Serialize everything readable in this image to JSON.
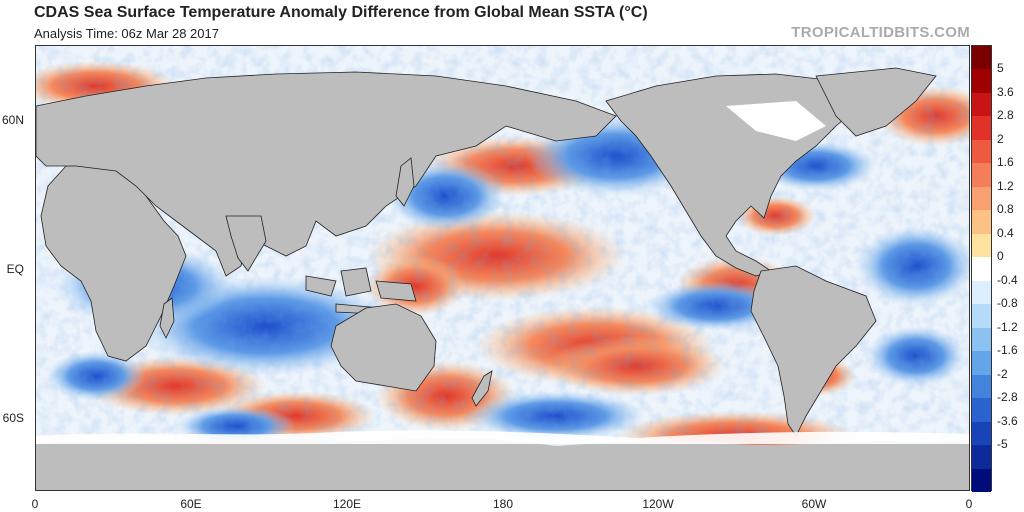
{
  "title": "CDAS Sea Surface Temperature Anomaly Difference from Global Mean SSTA (°C)",
  "subtitle": "Analysis Time: 06z Mar 28 2017",
  "source": "TROPICALTIDBITS.COM",
  "map": {
    "lat_labels": [
      "60N",
      "EQ",
      "60S"
    ],
    "lon_labels": [
      "0",
      "60E",
      "120E",
      "180",
      "120W",
      "60W",
      "0"
    ],
    "land_color": "#bdbdbd",
    "ice_color": "#ffffff"
  },
  "colorbar": {
    "labels": [
      "5",
      "3.6",
      "2.8",
      "2",
      "1.6",
      "1.2",
      "0.8",
      "0.4",
      "0",
      "-0.4",
      "-0.8",
      "-1.2",
      "-1.6",
      "-2",
      "-2.8",
      "-3.6",
      "-5"
    ],
    "colors": [
      "#7a0000",
      "#a00000",
      "#c81414",
      "#e03228",
      "#ee5a40",
      "#f47e5a",
      "#f8a070",
      "#fbc284",
      "#fde2a0",
      "#ffffff",
      "#dcefff",
      "#b4dcfa",
      "#8cc2f2",
      "#64a4e8",
      "#4284dc",
      "#2a62d0",
      "#1844b8",
      "#0c2a9a",
      "#000c7a"
    ]
  }
}
